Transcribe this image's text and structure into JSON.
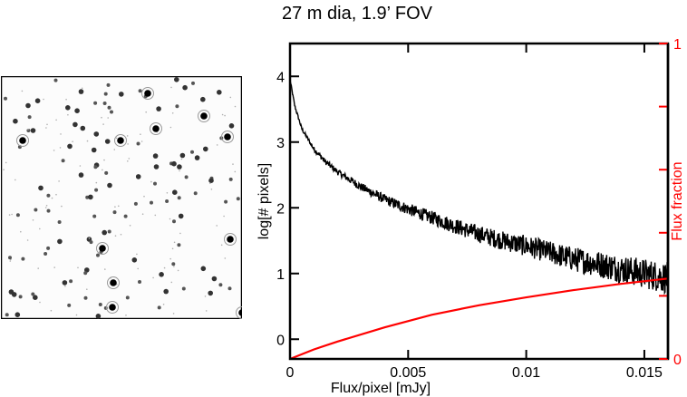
{
  "title": "27 m dia, 1.9’ FOV",
  "colors": {
    "histogram": "#000000",
    "cumulative": "#ff0000",
    "axis": "#000000",
    "right_axis": "#ff0000"
  },
  "image_panel": {
    "name": "star-field-image",
    "description_icon": "star-field"
  },
  "chart_data": {
    "type": "line",
    "title": "27 m dia, 1.9’ FOV",
    "xlabel": "Flux/pixel [mJy]",
    "ylabel": "log[# pixels]",
    "ylabel_right": "Flux fraction",
    "xlim": [
      0,
      0.016
    ],
    "ylim": [
      -0.3,
      4.5
    ],
    "ylim_right": [
      0,
      1
    ],
    "x_ticks": [
      0,
      0.005,
      0.01,
      0.015
    ],
    "x_tick_labels": [
      "0",
      "0.005",
      "0.01",
      "0.015"
    ],
    "y_ticks": [
      0,
      1,
      2,
      3,
      4
    ],
    "y_tick_labels": [
      "0",
      "1",
      "2",
      "3",
      "4"
    ],
    "y_right_ticks": [
      0,
      0.2,
      0.4,
      0.6,
      0.8,
      1
    ],
    "y_right_tick_labels": [
      "0",
      "1"
    ],
    "grid": false,
    "series": [
      {
        "name": "log[# pixels]",
        "axis": "left",
        "style": "noisy-line",
        "x": [
          0,
          0.0002,
          0.0005,
          0.001,
          0.0015,
          0.002,
          0.003,
          0.004,
          0.005,
          0.006,
          0.007,
          0.008,
          0.009,
          0.01,
          0.011,
          0.012,
          0.013,
          0.014,
          0.015,
          0.016
        ],
        "y": [
          3.95,
          3.55,
          3.2,
          2.9,
          2.7,
          2.55,
          2.32,
          2.13,
          1.98,
          1.85,
          1.72,
          1.6,
          1.5,
          1.42,
          1.32,
          1.22,
          1.15,
          1.07,
          1.0,
          0.93
        ]
      },
      {
        "name": "Flux fraction",
        "axis": "right",
        "style": "line",
        "x": [
          0,
          0.001,
          0.002,
          0.004,
          0.006,
          0.008,
          0.01,
          0.012,
          0.014,
          0.016
        ],
        "y": [
          0,
          0.03,
          0.055,
          0.1,
          0.14,
          0.17,
          0.195,
          0.218,
          0.238,
          0.255
        ]
      }
    ]
  }
}
